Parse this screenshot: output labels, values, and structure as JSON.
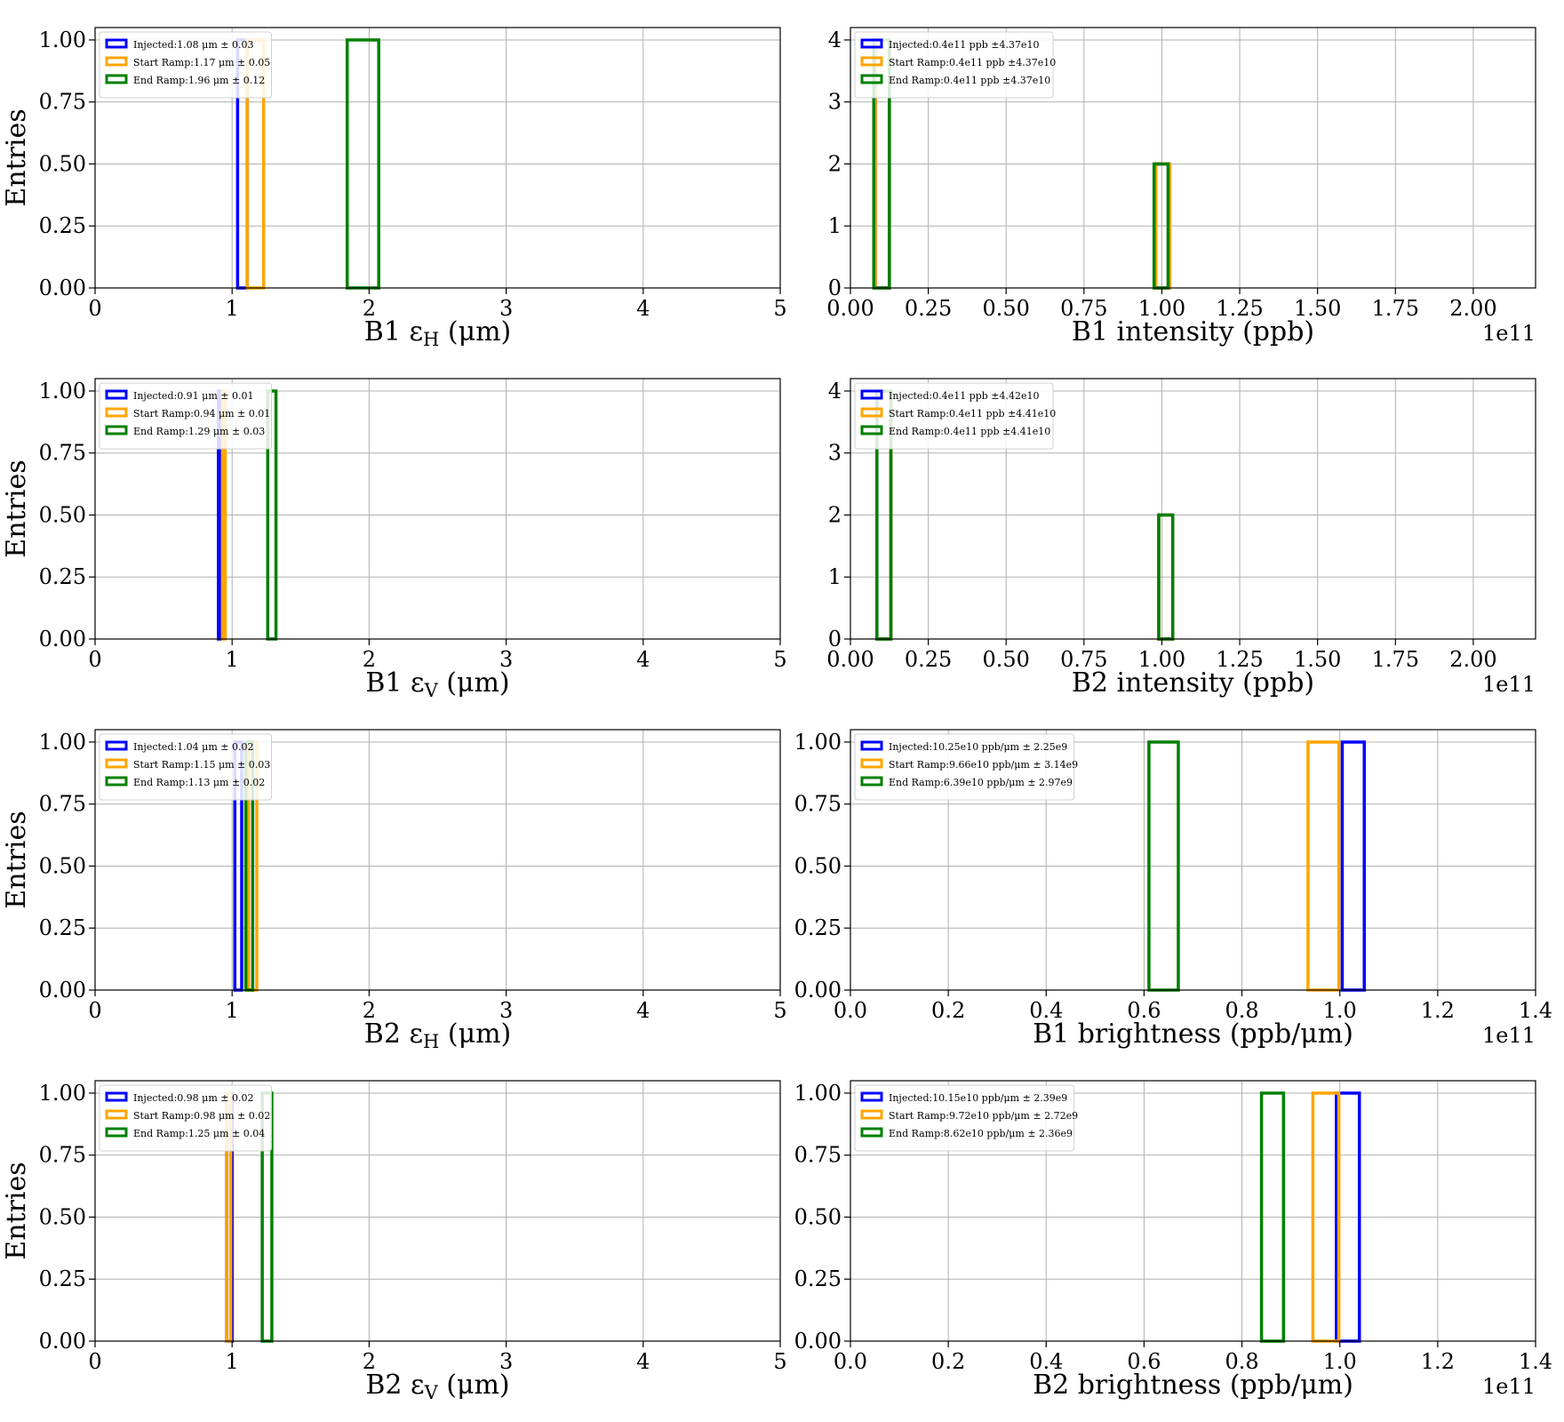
{
  "chart_data": [
    {
      "id": "b1-eps-h",
      "type": "histogram",
      "xlabel": "B1 ε_H (μm)",
      "ylabel": "Entries",
      "xlim": [
        0,
        5
      ],
      "ylim": [
        0,
        1.05
      ],
      "x_ticks": [
        "0",
        "1",
        "2",
        "3",
        "4",
        "5"
      ],
      "x_tick_values": [
        0,
        1,
        2,
        3,
        4,
        5
      ],
      "y_ticks": [
        "0.00",
        "0.25",
        "0.50",
        "0.75",
        "1.00"
      ],
      "y_tick_values": [
        0,
        0.25,
        0.5,
        0.75,
        1.0
      ],
      "x_offset_label": "",
      "grid": true,
      "legend_position": "top-left",
      "series": [
        {
          "label": "Injected:1.08 μm ± 0.03",
          "color": "#0000ff",
          "bins": [
            [
              1.04,
              1.11,
              1
            ]
          ]
        },
        {
          "label": "Start Ramp:1.17 μm ± 0.05",
          "color": "#ffa500",
          "bins": [
            [
              1.11,
              1.23,
              1
            ]
          ]
        },
        {
          "label": "End Ramp:1.96 μm ± 0.12",
          "color": "#008000",
          "bins": [
            [
              1.84,
              2.07,
              1
            ]
          ]
        }
      ]
    },
    {
      "id": "b1-intensity",
      "type": "histogram",
      "xlabel": "B1 intensity (ppb)",
      "ylabel": "",
      "xlim": [
        0,
        2.2
      ],
      "ylim": [
        0,
        4.2
      ],
      "x_ticks": [
        "0.00",
        "0.25",
        "0.50",
        "0.75",
        "1.00",
        "1.25",
        "1.50",
        "1.75",
        "2.00"
      ],
      "x_tick_values": [
        0,
        0.25,
        0.5,
        0.75,
        1.0,
        1.25,
        1.5,
        1.75,
        2.0
      ],
      "y_ticks": [
        "0",
        "1",
        "2",
        "3",
        "4"
      ],
      "y_tick_values": [
        0,
        1,
        2,
        3,
        4
      ],
      "x_offset_label": "1e11",
      "grid": true,
      "legend_position": "top-left",
      "series": [
        {
          "label": "Injected:0.4e11 ppb ±4.37e10",
          "color": "#0000ff",
          "bins": [
            [
              0.08,
              0.125,
              4
            ],
            [
              0.125,
              0.98,
              0
            ],
            [
              0.98,
              1.025,
              2
            ]
          ]
        },
        {
          "label": "Start Ramp:0.4e11 ppb ±4.37e10",
          "color": "#ffa500",
          "bins": [
            [
              0.08,
              0.125,
              4
            ],
            [
              0.125,
              0.98,
              0
            ],
            [
              0.98,
              1.025,
              2
            ]
          ]
        },
        {
          "label": "End Ramp:0.4e11 ppb ±4.37e10",
          "color": "#008000",
          "bins": [
            [
              0.075,
              0.125,
              4
            ],
            [
              0.125,
              0.975,
              0
            ],
            [
              0.975,
              1.02,
              2
            ]
          ]
        }
      ]
    },
    {
      "id": "b1-eps-v",
      "type": "histogram",
      "xlabel": "B1 ε_V (μm)",
      "ylabel": "Entries",
      "xlim": [
        0,
        5
      ],
      "ylim": [
        0,
        1.05
      ],
      "x_ticks": [
        "0",
        "1",
        "2",
        "3",
        "4",
        "5"
      ],
      "x_tick_values": [
        0,
        1,
        2,
        3,
        4,
        5
      ],
      "y_ticks": [
        "0.00",
        "0.25",
        "0.50",
        "0.75",
        "1.00"
      ],
      "y_tick_values": [
        0,
        0.25,
        0.5,
        0.75,
        1.0
      ],
      "x_offset_label": "",
      "grid": true,
      "legend_position": "top-left",
      "series": [
        {
          "label": "Injected:0.91 μm ± 0.01",
          "color": "#0000ff",
          "bins": [
            [
              0.9,
              0.92,
              1
            ]
          ]
        },
        {
          "label": "Start Ramp:0.94 μm ± 0.01",
          "color": "#ffa500",
          "bins": [
            [
              0.93,
              0.95,
              1
            ]
          ]
        },
        {
          "label": "End Ramp:1.29 μm ± 0.03",
          "color": "#008000",
          "bins": [
            [
              1.26,
              1.32,
              1
            ]
          ]
        }
      ]
    },
    {
      "id": "b2-intensity",
      "type": "histogram",
      "xlabel": "B2 intensity (ppb)",
      "ylabel": "",
      "xlim": [
        0,
        2.2
      ],
      "ylim": [
        0,
        4.2
      ],
      "x_ticks": [
        "0.00",
        "0.25",
        "0.50",
        "0.75",
        "1.00",
        "1.25",
        "1.50",
        "1.75",
        "2.00"
      ],
      "x_tick_values": [
        0,
        0.25,
        0.5,
        0.75,
        1.0,
        1.25,
        1.5,
        1.75,
        2.0
      ],
      "y_ticks": [
        "0",
        "1",
        "2",
        "3",
        "4"
      ],
      "y_tick_values": [
        0,
        1,
        2,
        3,
        4
      ],
      "x_offset_label": "1e11",
      "grid": true,
      "legend_position": "top-left",
      "series": [
        {
          "label": "Injected:0.4e11 ppb ±4.42e10",
          "color": "#0000ff",
          "bins": [
            [
              0.085,
              0.13,
              4
            ],
            [
              0.13,
              0.99,
              0
            ],
            [
              0.99,
              1.035,
              2
            ]
          ]
        },
        {
          "label": "Start Ramp:0.4e11 ppb ±4.41e10",
          "color": "#ffa500",
          "bins": [
            [
              0.085,
              0.13,
              4
            ],
            [
              0.13,
              0.99,
              0
            ],
            [
              0.99,
              1.035,
              2
            ]
          ]
        },
        {
          "label": "End Ramp:0.4e11 ppb ±4.41e10",
          "color": "#008000",
          "bins": [
            [
              0.085,
              0.13,
              4
            ],
            [
              0.13,
              0.99,
              0
            ],
            [
              0.99,
              1.035,
              2
            ]
          ]
        }
      ]
    },
    {
      "id": "b2-eps-h",
      "type": "histogram",
      "xlabel": "B2 ε_H (μm)",
      "ylabel": "Entries",
      "xlim": [
        0,
        5
      ],
      "ylim": [
        0,
        1.05
      ],
      "x_ticks": [
        "0",
        "1",
        "2",
        "3",
        "4",
        "5"
      ],
      "x_tick_values": [
        0,
        1,
        2,
        3,
        4,
        5
      ],
      "y_ticks": [
        "0.00",
        "0.25",
        "0.50",
        "0.75",
        "1.00"
      ],
      "y_tick_values": [
        0,
        0.25,
        0.5,
        0.75,
        1.0
      ],
      "x_offset_label": "",
      "grid": true,
      "legend_position": "top-left",
      "series": [
        {
          "label": "Injected:1.04 μm ± 0.02",
          "color": "#0000ff",
          "bins": [
            [
              1.02,
              1.07,
              1
            ]
          ]
        },
        {
          "label": "Start Ramp:1.15 μm ± 0.03",
          "color": "#ffa500",
          "bins": [
            [
              1.12,
              1.18,
              1
            ]
          ]
        },
        {
          "label": "End Ramp:1.13 μm ± 0.02",
          "color": "#008000",
          "bins": [
            [
              1.1,
              1.15,
              1
            ]
          ]
        }
      ]
    },
    {
      "id": "b1-brightness",
      "type": "histogram",
      "xlabel": "B1 brightness (ppb/μm)",
      "ylabel": "",
      "xlim": [
        0,
        1.4
      ],
      "ylim": [
        0,
        1.05
      ],
      "x_ticks": [
        "0.0",
        "0.2",
        "0.4",
        "0.6",
        "0.8",
        "1.0",
        "1.2",
        "1.4"
      ],
      "x_tick_values": [
        0,
        0.2,
        0.4,
        0.6,
        0.8,
        1.0,
        1.2,
        1.4
      ],
      "y_ticks": [
        "0.00",
        "0.25",
        "0.50",
        "0.75",
        "1.00"
      ],
      "y_tick_values": [
        0,
        0.25,
        0.5,
        0.75,
        1.0
      ],
      "x_offset_label": "1e11",
      "grid": true,
      "legend_position": "top-left",
      "series": [
        {
          "label": "Injected:10.25e10 ppb/μm ± 2.25e9",
          "color": "#0000ff",
          "bins": [
            [
              1.005,
              1.05,
              1
            ]
          ]
        },
        {
          "label": "Start Ramp:9.66e10 ppb/μm ± 3.14e9",
          "color": "#ffa500",
          "bins": [
            [
              0.935,
              0.998,
              1
            ]
          ]
        },
        {
          "label": "End Ramp:6.39e10 ppb/μm ± 2.97e9",
          "color": "#008000",
          "bins": [
            [
              0.61,
              0.67,
              1
            ]
          ]
        }
      ]
    },
    {
      "id": "b2-eps-v",
      "type": "histogram",
      "xlabel": "B2 ε_V (μm)",
      "ylabel": "Entries",
      "xlim": [
        0,
        5
      ],
      "ylim": [
        0,
        1.05
      ],
      "x_ticks": [
        "0",
        "1",
        "2",
        "3",
        "4",
        "5"
      ],
      "x_tick_values": [
        0,
        1,
        2,
        3,
        4,
        5
      ],
      "y_ticks": [
        "0.00",
        "0.25",
        "0.50",
        "0.75",
        "1.00"
      ],
      "y_tick_values": [
        0,
        0.25,
        0.5,
        0.75,
        1.0
      ],
      "x_offset_label": "",
      "grid": true,
      "legend_position": "top-left",
      "series": [
        {
          "label": "Injected:0.98 μm ± 0.02",
          "color": "#0000ff",
          "bins": [
            [
              0.96,
              1.0,
              1
            ]
          ]
        },
        {
          "label": "Start Ramp:0.98 μm ± 0.02",
          "color": "#ffa500",
          "bins": [
            [
              0.96,
              0.99,
              1
            ]
          ]
        },
        {
          "label": "End Ramp:1.25 μm ± 0.04",
          "color": "#008000",
          "bins": [
            [
              1.22,
              1.29,
              1
            ]
          ]
        }
      ]
    },
    {
      "id": "b2-brightness",
      "type": "histogram",
      "xlabel": "B2 brightness (ppb/μm)",
      "ylabel": "",
      "xlim": [
        0,
        1.4
      ],
      "ylim": [
        0,
        1.05
      ],
      "x_ticks": [
        "0.0",
        "0.2",
        "0.4",
        "0.6",
        "0.8",
        "1.0",
        "1.2",
        "1.4"
      ],
      "x_tick_values": [
        0,
        0.2,
        0.4,
        0.6,
        0.8,
        1.0,
        1.2,
        1.4
      ],
      "y_ticks": [
        "0.00",
        "0.25",
        "0.50",
        "0.75",
        "1.00"
      ],
      "y_tick_values": [
        0,
        0.25,
        0.5,
        0.75,
        1.0
      ],
      "x_offset_label": "1e11",
      "grid": true,
      "legend_position": "top-left",
      "series": [
        {
          "label": "Injected:10.15e10 ppb/μm ± 2.39e9",
          "color": "#0000ff",
          "bins": [
            [
              0.993,
              1.04,
              1
            ]
          ]
        },
        {
          "label": "Start Ramp:9.72e10 ppb/μm ± 2.72e9",
          "color": "#ffa500",
          "bins": [
            [
              0.945,
              0.998,
              1
            ]
          ]
        },
        {
          "label": "End Ramp:8.62e10 ppb/μm ± 2.36e9",
          "color": "#008000",
          "bins": [
            [
              0.84,
              0.885,
              1
            ]
          ]
        }
      ]
    }
  ]
}
